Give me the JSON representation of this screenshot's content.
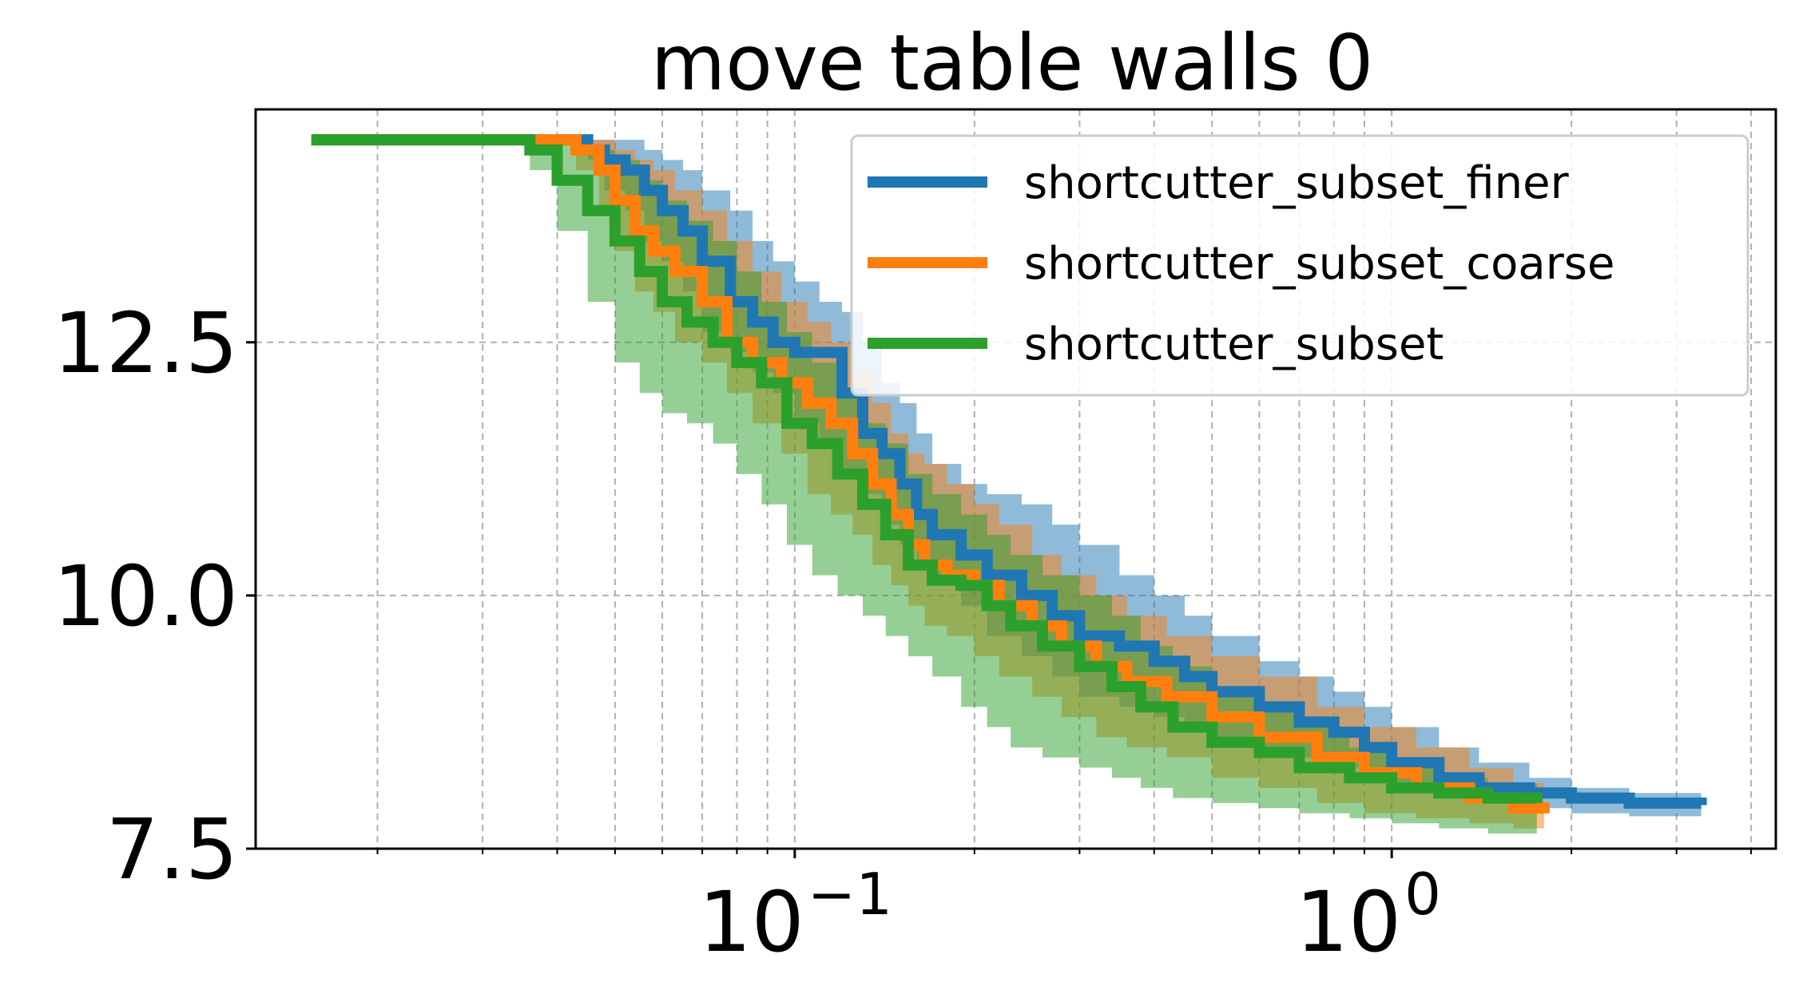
{
  "chart_data": {
    "type": "line",
    "title": "move table walls 0",
    "xlabel": "",
    "ylabel": "",
    "xscale": "log",
    "xlim": [
      0.0125,
      4.4
    ],
    "ylim": [
      7.5,
      14.8
    ],
    "yticks": [
      7.5,
      10.0,
      12.5
    ],
    "ytick_labels": [
      "7.5",
      "10.0",
      "12.5"
    ],
    "xticks": [
      0.1,
      1
    ],
    "xtick_labels": [
      {
        "base": "10",
        "exp": "−1"
      },
      {
        "base": "10",
        "exp": "0"
      }
    ],
    "grid": true,
    "legend_position": "top-right",
    "series": [
      {
        "name": "shortcutter_subset_finer",
        "color": "#1f77b4",
        "x": [
          0.0155,
          0.045,
          0.048,
          0.052,
          0.056,
          0.06,
          0.065,
          0.07,
          0.078,
          0.085,
          0.092,
          0.1,
          0.11,
          0.12,
          0.13,
          0.14,
          0.15,
          0.16,
          0.17,
          0.19,
          0.21,
          0.24,
          0.27,
          0.3,
          0.35,
          0.4,
          0.45,
          0.5,
          0.6,
          0.7,
          0.8,
          0.9,
          1.0,
          1.2,
          1.4,
          1.7,
          2.0,
          2.5,
          3.3
        ],
        "y": [
          14.5,
          14.4,
          14.3,
          14.2,
          14.0,
          13.8,
          13.6,
          13.3,
          12.9,
          12.7,
          12.5,
          12.4,
          12.4,
          12.0,
          11.6,
          11.4,
          11.1,
          10.8,
          10.6,
          10.4,
          10.2,
          10.0,
          9.8,
          9.6,
          9.5,
          9.35,
          9.2,
          9.05,
          8.9,
          8.75,
          8.65,
          8.5,
          8.35,
          8.2,
          8.1,
          8.05,
          8.0,
          7.95,
          7.93
        ],
        "lower": [
          14.5,
          14.3,
          14.0,
          13.8,
          13.5,
          13.3,
          13.0,
          12.6,
          12.4,
          12.2,
          12.0,
          11.7,
          11.5,
          11.2,
          11.0,
          10.7,
          10.5,
          10.3,
          10.1,
          9.9,
          9.6,
          9.4,
          9.2,
          9.0,
          8.9,
          8.8,
          8.7,
          8.6,
          8.5,
          8.4,
          8.3,
          8.2,
          8.1,
          8.0,
          7.95,
          7.9,
          7.85,
          7.82,
          7.8
        ],
        "upper": [
          14.5,
          14.5,
          14.5,
          14.5,
          14.4,
          14.3,
          14.2,
          14.0,
          13.8,
          13.5,
          13.3,
          13.1,
          12.9,
          12.8,
          12.5,
          12.1,
          11.9,
          11.6,
          11.3,
          11.1,
          11.0,
          10.9,
          10.7,
          10.5,
          10.2,
          10.0,
          9.8,
          9.6,
          9.35,
          9.2,
          9.05,
          8.9,
          8.7,
          8.5,
          8.35,
          8.2,
          8.1,
          8.05,
          8.0
        ]
      },
      {
        "name": "shortcutter_subset_coarse",
        "color": "#ff7f0e",
        "x": [
          0.0155,
          0.043,
          0.047,
          0.05,
          0.054,
          0.058,
          0.063,
          0.07,
          0.077,
          0.085,
          0.095,
          0.105,
          0.115,
          0.125,
          0.135,
          0.145,
          0.155,
          0.165,
          0.18,
          0.2,
          0.22,
          0.25,
          0.28,
          0.32,
          0.36,
          0.42,
          0.5,
          0.6,
          0.75,
          0.9,
          1.1,
          1.35,
          1.6,
          1.8
        ],
        "y": [
          14.5,
          14.4,
          14.2,
          13.9,
          13.6,
          13.4,
          13.2,
          12.9,
          12.5,
          12.3,
          12.1,
          11.9,
          11.7,
          11.4,
          11.1,
          10.8,
          10.5,
          10.3,
          10.2,
          10.1,
          9.9,
          9.7,
          9.5,
          9.3,
          9.15,
          9.0,
          8.8,
          8.6,
          8.4,
          8.25,
          8.1,
          8.0,
          7.9,
          7.85
        ],
        "lower": [
          14.5,
          14.2,
          13.8,
          13.4,
          13.0,
          12.8,
          12.5,
          12.3,
          12.0,
          11.7,
          11.4,
          11.0,
          10.8,
          10.6,
          10.3,
          10.1,
          9.9,
          9.7,
          9.6,
          9.4,
          9.2,
          9.0,
          8.8,
          8.6,
          8.5,
          8.4,
          8.2,
          8.1,
          7.95,
          7.85,
          7.8,
          7.75,
          7.7,
          7.68
        ],
        "upper": [
          14.5,
          14.5,
          14.5,
          14.4,
          14.3,
          14.2,
          14.0,
          13.8,
          13.5,
          13.2,
          12.9,
          12.7,
          12.5,
          12.2,
          11.9,
          11.6,
          11.4,
          11.3,
          11.1,
          10.9,
          10.7,
          10.4,
          10.2,
          10.0,
          9.8,
          9.6,
          9.4,
          9.2,
          8.9,
          8.7,
          8.5,
          8.3,
          8.15,
          8.05
        ]
      },
      {
        "name": "shortcutter_subset",
        "color": "#2ca02c",
        "x": [
          0.0155,
          0.036,
          0.04,
          0.045,
          0.05,
          0.055,
          0.06,
          0.066,
          0.073,
          0.08,
          0.088,
          0.097,
          0.107,
          0.118,
          0.13,
          0.142,
          0.155,
          0.17,
          0.19,
          0.21,
          0.23,
          0.26,
          0.3,
          0.34,
          0.38,
          0.43,
          0.5,
          0.6,
          0.7,
          0.85,
          1.0,
          1.2,
          1.45,
          1.75
        ],
        "y": [
          14.5,
          14.4,
          14.1,
          13.8,
          13.5,
          13.2,
          12.9,
          12.7,
          12.5,
          12.3,
          12.1,
          11.7,
          11.5,
          11.2,
          10.9,
          10.6,
          10.3,
          10.15,
          10.1,
          9.9,
          9.7,
          9.5,
          9.3,
          9.1,
          8.9,
          8.7,
          8.55,
          8.45,
          8.3,
          8.2,
          8.1,
          8.05,
          8.0,
          7.95
        ],
        "lower": [
          14.5,
          14.2,
          13.6,
          12.9,
          12.3,
          12.0,
          11.8,
          11.7,
          11.5,
          11.2,
          10.9,
          10.5,
          10.2,
          10.0,
          9.8,
          9.6,
          9.4,
          9.2,
          8.9,
          8.7,
          8.5,
          8.4,
          8.3,
          8.2,
          8.1,
          8.0,
          7.95,
          7.9,
          7.85,
          7.8,
          7.75,
          7.7,
          7.65,
          7.62
        ],
        "upper": [
          14.5,
          14.5,
          14.5,
          14.4,
          14.3,
          14.1,
          13.9,
          13.7,
          13.5,
          13.2,
          12.9,
          12.6,
          12.3,
          12.0,
          11.7,
          11.5,
          11.2,
          11.0,
          10.8,
          10.6,
          10.4,
          10.2,
          10.0,
          9.8,
          9.5,
          9.3,
          9.1,
          8.9,
          8.7,
          8.5,
          8.3,
          8.2,
          8.15,
          8.1
        ]
      }
    ]
  }
}
